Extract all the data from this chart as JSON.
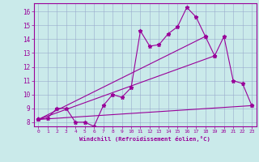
{
  "xlabel": "Windchill (Refroidissement éolien,°C)",
  "background_color": "#caeaea",
  "line_color": "#990099",
  "xlim": [
    -0.5,
    23.5
  ],
  "ylim": [
    7.7,
    16.6
  ],
  "yticks": [
    8,
    9,
    10,
    11,
    12,
    13,
    14,
    15,
    16
  ],
  "xticks": [
    0,
    1,
    2,
    3,
    4,
    5,
    6,
    7,
    8,
    9,
    10,
    11,
    12,
    13,
    14,
    15,
    16,
    17,
    18,
    19,
    20,
    21,
    22,
    23
  ],
  "line1_x": [
    0,
    1,
    2,
    3,
    4,
    5,
    6,
    7,
    8,
    9,
    10,
    11,
    12,
    13,
    14,
    15,
    16,
    17,
    18,
    19,
    20,
    21,
    22,
    23
  ],
  "line1_y": [
    8.2,
    8.3,
    9.0,
    9.0,
    8.0,
    8.0,
    7.7,
    9.2,
    10.0,
    9.8,
    10.5,
    14.6,
    13.5,
    13.6,
    14.4,
    14.9,
    16.3,
    15.6,
    14.2,
    12.8,
    14.2,
    11.0,
    10.8,
    9.2
  ],
  "line2_x": [
    0,
    19
  ],
  "line2_y": [
    8.2,
    12.8
  ],
  "line3_x": [
    0,
    23
  ],
  "line3_y": [
    8.2,
    9.2
  ],
  "line4_x": [
    0,
    18
  ],
  "line4_y": [
    8.2,
    14.2
  ],
  "grid_color": "#99aacc",
  "marker": "*",
  "markersize": 3.5,
  "linewidth": 0.8
}
